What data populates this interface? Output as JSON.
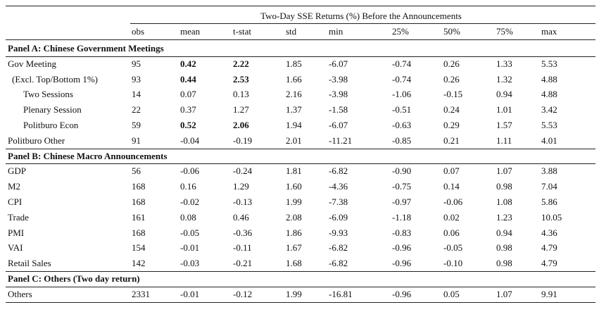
{
  "title": "Two-Day SSE Returns (%) Before the Announcements",
  "columns": [
    "obs",
    "mean",
    "t-stat",
    "std",
    "min",
    "25%",
    "50%",
    "75%",
    "max"
  ],
  "panels": [
    {
      "label": "Panel A: Chinese Government Meetings",
      "rows": [
        {
          "label": "Gov Meeting",
          "indent": 0,
          "values": [
            "95",
            "0.42",
            "2.22",
            "1.85",
            "-6.07",
            "-0.74",
            "0.26",
            "1.33",
            "5.53"
          ],
          "bold": [
            1,
            2
          ]
        },
        {
          "label": "(Excl. Top/Bottom 1%)",
          "indent": 1,
          "values": [
            "93",
            "0.44",
            "2.53",
            "1.66",
            "-3.98",
            "-0.74",
            "0.26",
            "1.32",
            "4.88"
          ],
          "bold": [
            1,
            2
          ]
        },
        {
          "label": "Two Sessions",
          "indent": 2,
          "values": [
            "14",
            "0.07",
            "0.13",
            "2.16",
            "-3.98",
            "-1.06",
            "-0.15",
            "0.94",
            "4.88"
          ],
          "bold": []
        },
        {
          "label": "Plenary Session",
          "indent": 2,
          "values": [
            "22",
            "0.37",
            "1.27",
            "1.37",
            "-1.58",
            "-0.51",
            "0.24",
            "1.01",
            "3.42"
          ],
          "bold": []
        },
        {
          "label": "Politburo Econ",
          "indent": 2,
          "values": [
            "59",
            "0.52",
            "2.06",
            "1.94",
            "-6.07",
            "-0.63",
            "0.29",
            "1.57",
            "5.53"
          ],
          "bold": [
            1,
            2
          ]
        },
        {
          "label": "Politburo Other",
          "indent": 0,
          "values": [
            "91",
            "-0.04",
            "-0.19",
            "2.01",
            "-11.21",
            "-0.85",
            "0.21",
            "1.11",
            "4.01"
          ],
          "bold": []
        }
      ]
    },
    {
      "label": "Panel B: Chinese Macro Announcements",
      "rows": [
        {
          "label": "GDP",
          "indent": 0,
          "values": [
            "56",
            "-0.06",
            "-0.24",
            "1.81",
            "-6.82",
            "-0.90",
            "0.07",
            "1.07",
            "3.88"
          ],
          "bold": []
        },
        {
          "label": "M2",
          "indent": 0,
          "values": [
            "168",
            "0.16",
            "1.29",
            "1.60",
            "-4.36",
            "-0.75",
            "0.14",
            "0.98",
            "7.04"
          ],
          "bold": []
        },
        {
          "label": "CPI",
          "indent": 0,
          "values": [
            "168",
            "-0.02",
            "-0.13",
            "1.99",
            "-7.38",
            "-0.97",
            "-0.06",
            "1.08",
            "5.86"
          ],
          "bold": []
        },
        {
          "label": "Trade",
          "indent": 0,
          "values": [
            "161",
            "0.08",
            "0.46",
            "2.08",
            "-6.09",
            "-1.18",
            "0.02",
            "1.23",
            "10.05"
          ],
          "bold": []
        },
        {
          "label": "PMI",
          "indent": 0,
          "values": [
            "168",
            "-0.05",
            "-0.36",
            "1.86",
            "-9.93",
            "-0.83",
            "0.06",
            "0.94",
            "4.36"
          ],
          "bold": []
        },
        {
          "label": "VAI",
          "indent": 0,
          "values": [
            "154",
            "-0.01",
            "-0.11",
            "1.67",
            "-6.82",
            "-0.96",
            "-0.05",
            "0.98",
            "4.79"
          ],
          "bold": []
        },
        {
          "label": "Retail Sales",
          "indent": 0,
          "values": [
            "142",
            "-0.03",
            "-0.21",
            "1.68",
            "-6.82",
            "-0.96",
            "-0.10",
            "0.98",
            "4.79"
          ],
          "bold": []
        }
      ]
    },
    {
      "label": "Panel C: Others (Two day return)",
      "rows": [
        {
          "label": "Others",
          "indent": 0,
          "values": [
            "2331",
            "-0.01",
            "-0.12",
            "1.99",
            "-16.81",
            "-0.96",
            "0.05",
            "1.07",
            "9.91"
          ],
          "bold": []
        }
      ]
    }
  ]
}
